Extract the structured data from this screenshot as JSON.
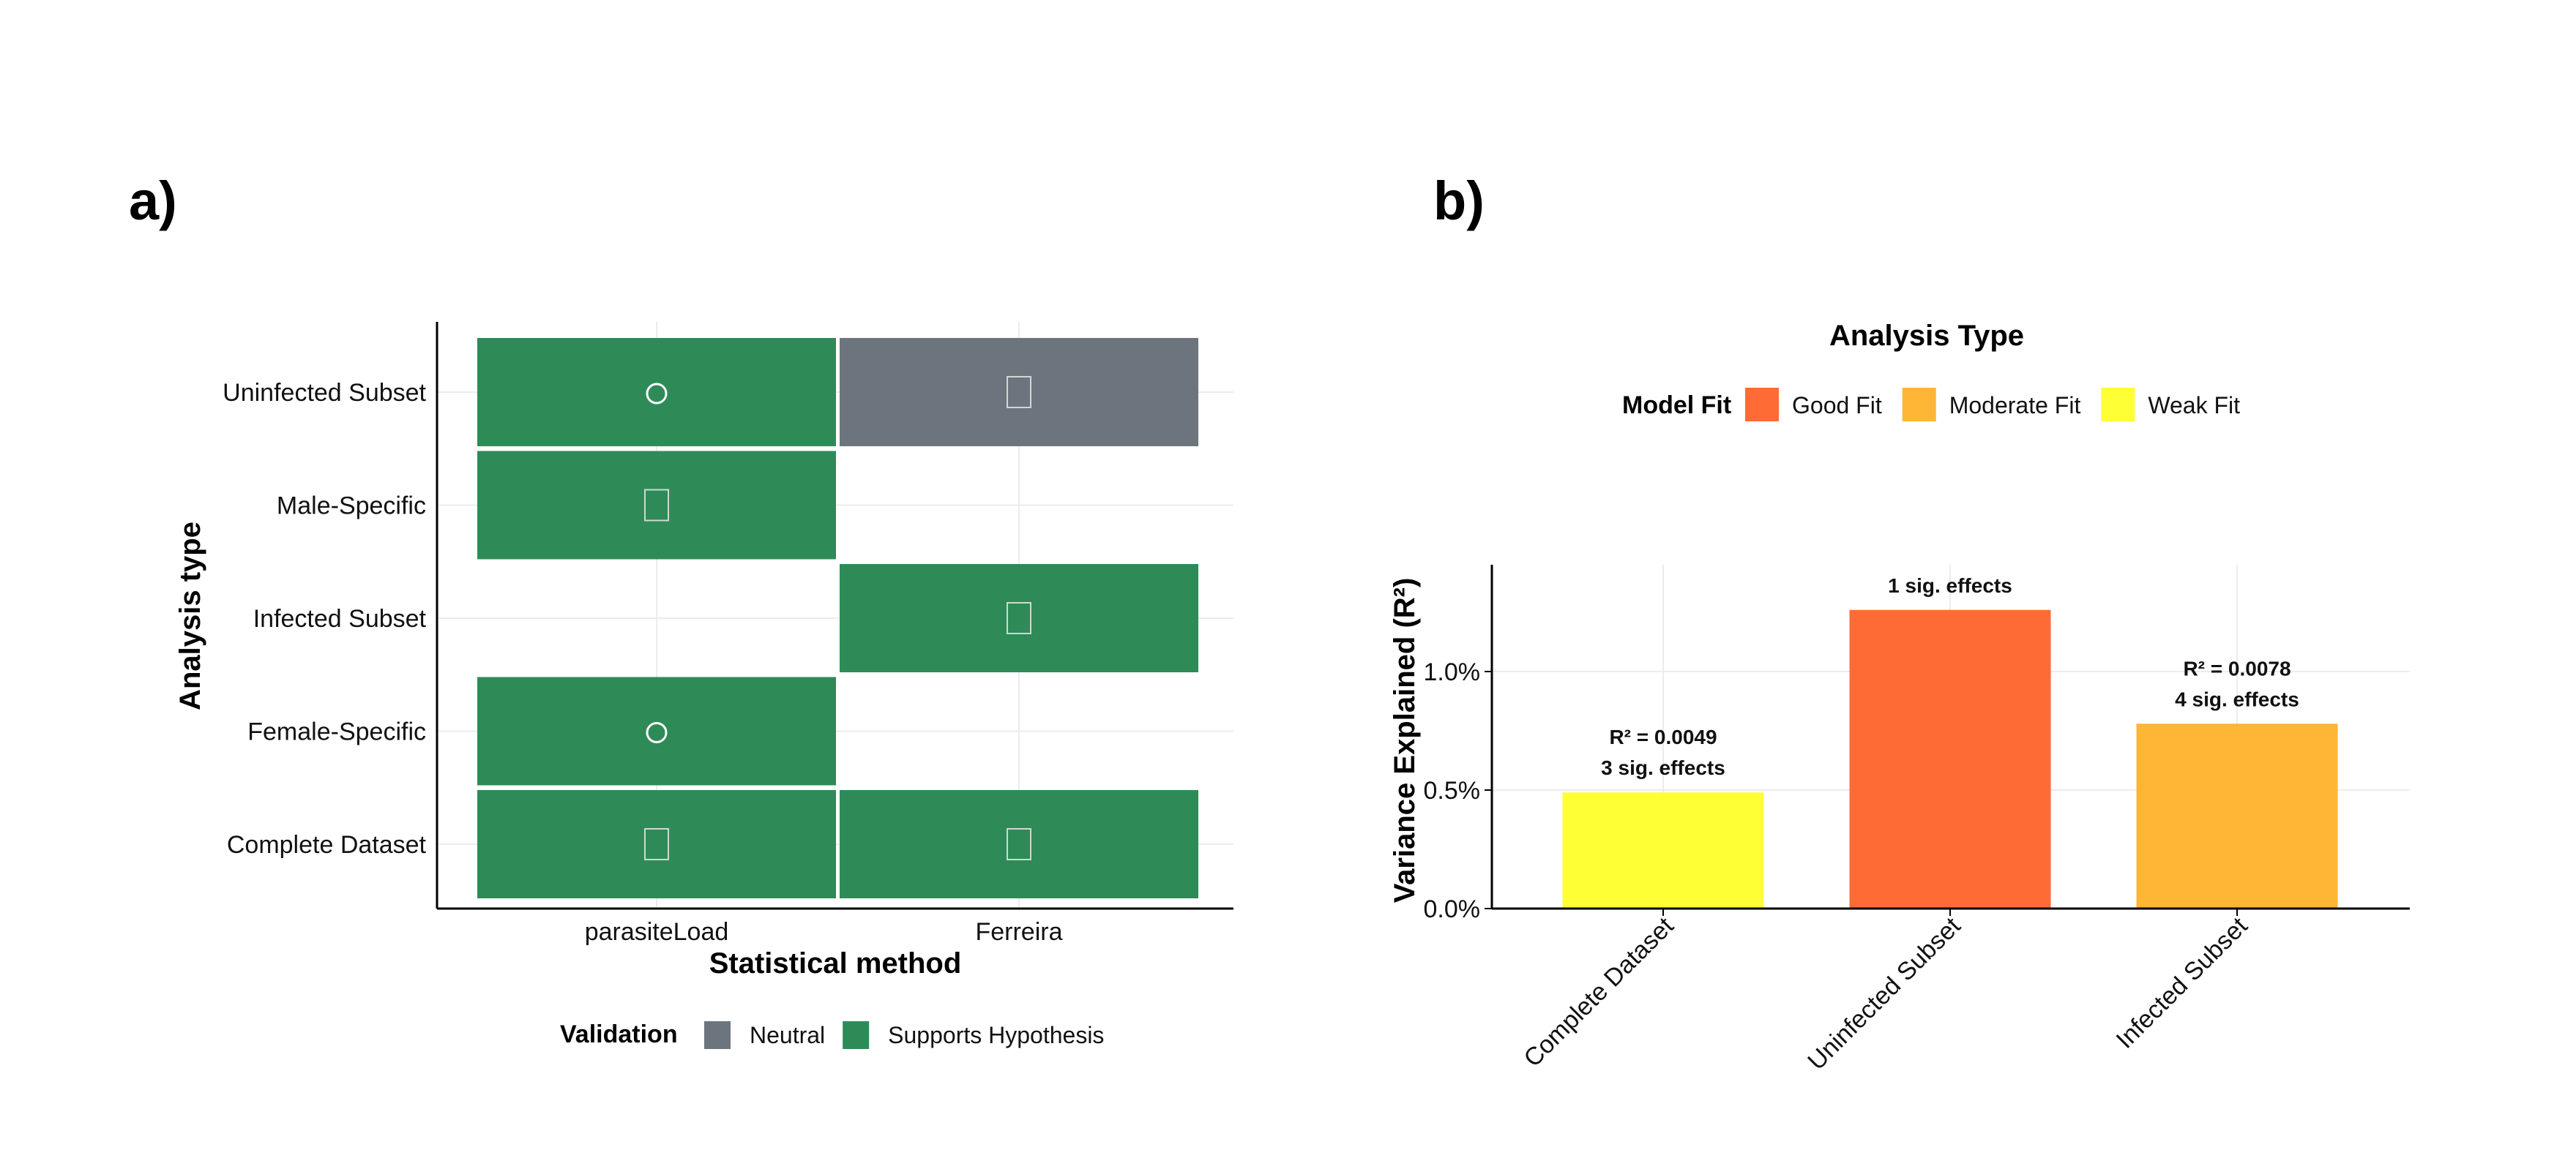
{
  "panels": {
    "a_label": "a)",
    "b_label": "b)"
  },
  "chart_data": [
    {
      "type": "heatmap",
      "xlabel": "Statistical method",
      "ylabel": "Analysis type",
      "x_categories": [
        "parasiteLoad",
        "Ferreira"
      ],
      "y_categories": [
        "Uninfected Subset",
        "Male-Specific",
        "Infected Subset",
        "Female-Specific",
        "Complete Dataset"
      ],
      "cells": [
        {
          "x": "parasiteLoad",
          "y": "Uninfected Subset",
          "validation": "Supports Hypothesis",
          "symbol": "circle"
        },
        {
          "x": "Ferreira",
          "y": "Uninfected Subset",
          "validation": "Neutral",
          "symbol": "box"
        },
        {
          "x": "parasiteLoad",
          "y": "Male-Specific",
          "validation": "Supports Hypothesis",
          "symbol": "box"
        },
        {
          "x": "Ferreira",
          "y": "Infected Subset",
          "validation": "Supports Hypothesis",
          "symbol": "box"
        },
        {
          "x": "parasiteLoad",
          "y": "Female-Specific",
          "validation": "Supports Hypothesis",
          "symbol": "circle"
        },
        {
          "x": "parasiteLoad",
          "y": "Complete Dataset",
          "validation": "Supports Hypothesis",
          "symbol": "box"
        },
        {
          "x": "Ferreira",
          "y": "Complete Dataset",
          "validation": "Supports Hypothesis",
          "symbol": "box"
        }
      ],
      "legend": {
        "title": "Validation",
        "position": "bottom",
        "entries": [
          {
            "label": "Neutral",
            "color": "#6c757d"
          },
          {
            "label": "Supports Hypothesis",
            "color": "#2e8b57"
          }
        ]
      },
      "grid": true
    },
    {
      "type": "bar",
      "title": "Analysis Type",
      "xlabel": "",
      "ylabel": "Variance Explained (R²)",
      "categories": [
        "Complete Dataset",
        "Uninfected Subset",
        "Infected Subset"
      ],
      "values": [
        0.49,
        1.26,
        0.78
      ],
      "value_unit": "%",
      "fits": [
        "Weak Fit",
        "Good Fit",
        "Moderate Fit"
      ],
      "bar_labels": [
        [
          "R² = 0.0049",
          "3 sig. effects"
        ],
        [
          "1 sig. effects"
        ],
        [
          "R² = 0.0078",
          "4 sig. effects"
        ]
      ],
      "yticks": [
        "0.0%",
        "0.5%",
        "1.0%"
      ],
      "ytick_values": [
        0,
        0.5,
        1.0
      ],
      "ylim": [
        0,
        1.42
      ],
      "legend": {
        "title": "Model Fit",
        "position": "top",
        "entries": [
          {
            "label": "Good Fit",
            "color": "#ff6b35"
          },
          {
            "label": "Moderate Fit",
            "color": "#ffb535"
          },
          {
            "label": "Weak Fit",
            "color": "#ffff35"
          }
        ]
      },
      "grid": true
    }
  ]
}
